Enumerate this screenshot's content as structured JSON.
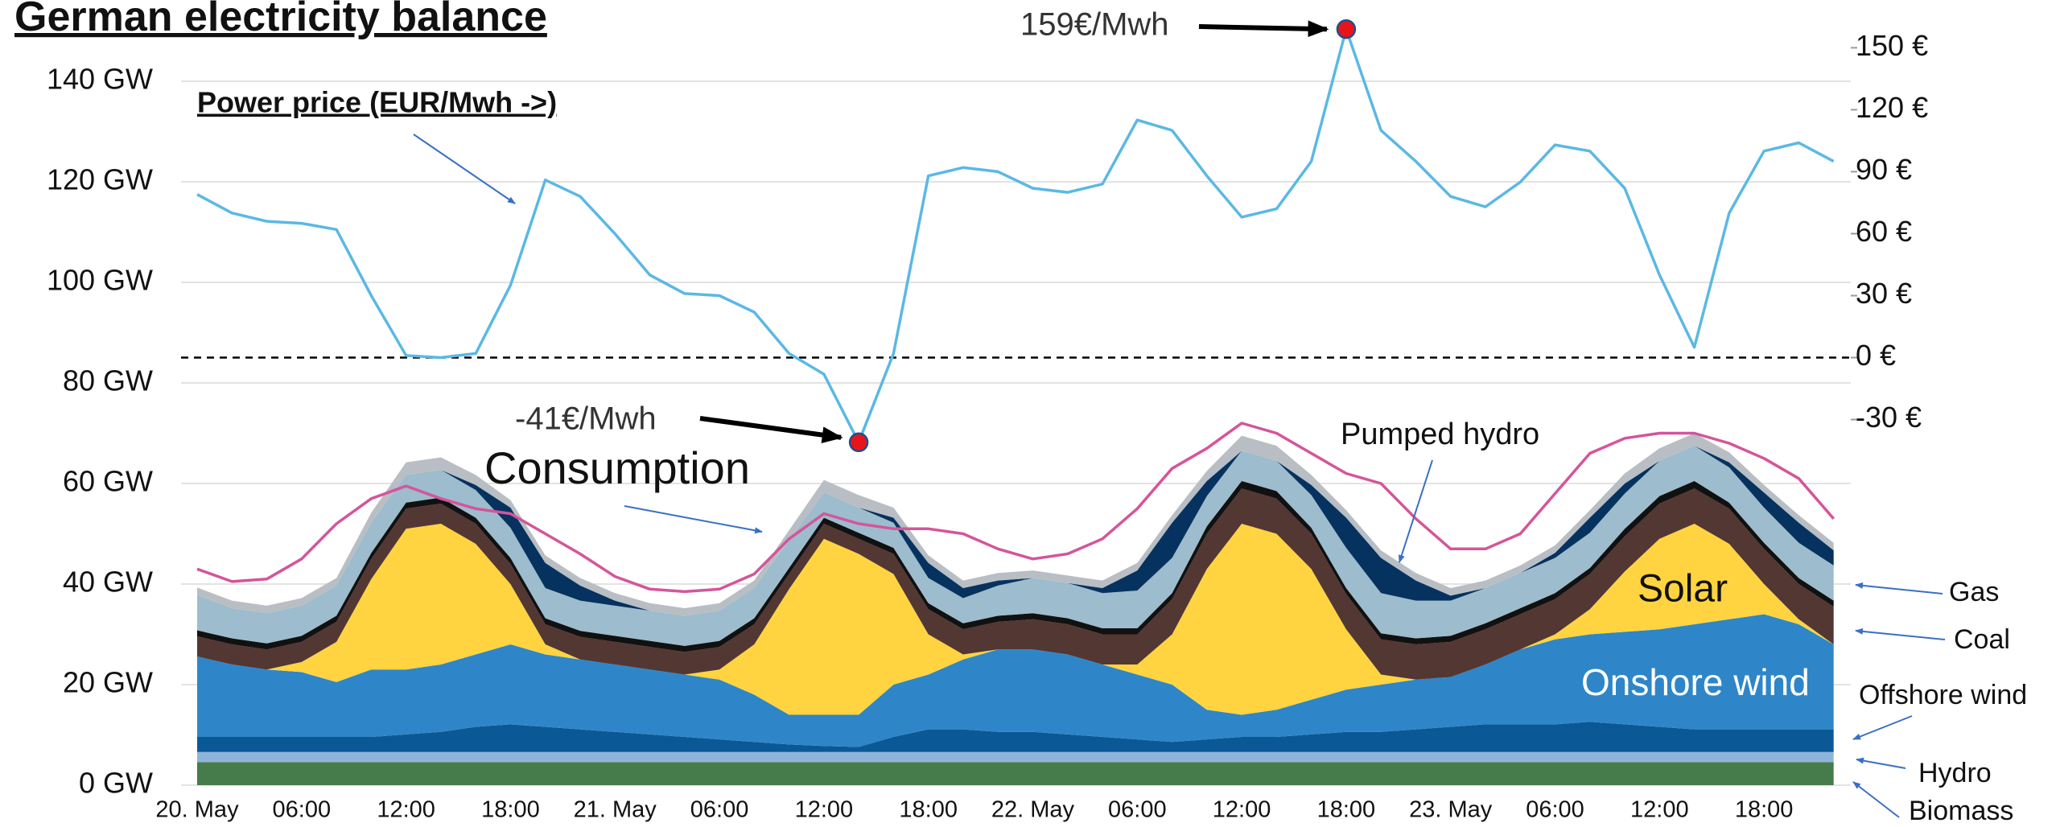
{
  "chart_data": {
    "type": "area",
    "stacked": true,
    "title": "German electricity balance",
    "categories": [
      "20. May",
      null,
      null,
      "06:00",
      null,
      null,
      "12:00",
      null,
      null,
      "18:00",
      null,
      null,
      "21. May",
      null,
      null,
      "06:00",
      null,
      null,
      "12:00",
      null,
      null,
      "18:00",
      null,
      null,
      "22. May",
      null,
      null,
      "06:00",
      null,
      null,
      "12:00",
      null,
      null,
      "18:00",
      null,
      null,
      "23. May",
      null,
      null,
      "06:00",
      null,
      null,
      "12:00",
      null,
      null,
      "18:00",
      null,
      null
    ],
    "ylim": [
      0,
      152
    ],
    "yticks": [
      {
        "value": 0,
        "label": "0 GW"
      },
      {
        "value": 20,
        "label": "20 GW"
      },
      {
        "value": 40,
        "label": "40 GW"
      },
      {
        "value": 60,
        "label": "60 GW"
      },
      {
        "value": 80,
        "label": "80 GW"
      },
      {
        "value": 100,
        "label": "100 GW"
      },
      {
        "value": 120,
        "label": "120 GW"
      },
      {
        "value": 140,
        "label": "140 GW"
      }
    ],
    "y2lim": [
      -207,
      163
    ],
    "y2ticks": [
      {
        "value": -30,
        "label": "-30 €"
      },
      {
        "value": 0,
        "label": "0 €"
      },
      {
        "value": 30,
        "label": "30 €"
      },
      {
        "value": 60,
        "label": "60 €"
      },
      {
        "value": 90,
        "label": "90 €"
      },
      {
        "value": 120,
        "label": "120 €"
      },
      {
        "value": 150,
        "label": "150 €"
      }
    ],
    "grid": true,
    "series": [
      {
        "name": "Biomass",
        "color": "#467b4b",
        "values": [
          4.6,
          4.6,
          4.6,
          4.6,
          4.6,
          4.6,
          4.6,
          4.6,
          4.6,
          4.6,
          4.6,
          4.6,
          4.6,
          4.6,
          4.6,
          4.6,
          4.6,
          4.6,
          4.6,
          4.6,
          4.6,
          4.6,
          4.6,
          4.6,
          4.6,
          4.6,
          4.6,
          4.6,
          4.6,
          4.6,
          4.6,
          4.6,
          4.6,
          4.6,
          4.6,
          4.6,
          4.6,
          4.6,
          4.6,
          4.6,
          4.6,
          4.6,
          4.6,
          4.6,
          4.6,
          4.6,
          4.6,
          4.6
        ]
      },
      {
        "name": "Hydro",
        "color": "#8fb4dc",
        "values": [
          2,
          2,
          2,
          2,
          2,
          2,
          2,
          2,
          2,
          2,
          2,
          2,
          2,
          2,
          2,
          2,
          2,
          2,
          2,
          2,
          2,
          2,
          2,
          2,
          2,
          2,
          2,
          2,
          2,
          2,
          2,
          2,
          2,
          2,
          2,
          2,
          2,
          2,
          2,
          2,
          2,
          2,
          2,
          2,
          2,
          2,
          2,
          2
        ]
      },
      {
        "name": "Offshore wind",
        "color": "#0b5896",
        "values": [
          3,
          3,
          3,
          3,
          3,
          3,
          3.5,
          4,
          5,
          5.5,
          5,
          4.5,
          4,
          3.5,
          3,
          2.5,
          2,
          1.5,
          1.2,
          1,
          3,
          4.5,
          4.5,
          4,
          4,
          3.5,
          3,
          2.5,
          2,
          2.5,
          3,
          3,
          3.5,
          4,
          4,
          4.5,
          5,
          5.5,
          5.5,
          5.5,
          6,
          5.5,
          5,
          4.5,
          4.5,
          4.5,
          4.5,
          4.5
        ]
      },
      {
        "name": "Onshore wind",
        "color": "#2e86c8",
        "values": [
          16,
          14.4,
          13.4,
          12.9,
          10.9,
          13.4,
          12.9,
          13.4,
          14.4,
          15.9,
          14.4,
          13.9,
          13.4,
          12.9,
          12.4,
          11.9,
          9.4,
          5.9,
          6.2,
          6.4,
          10.4,
          10.9,
          13.9,
          16.4,
          16.4,
          15.9,
          14.4,
          12.9,
          11.4,
          5.9,
          4.4,
          5.4,
          6.9,
          8.4,
          9.4,
          9.9,
          9.9,
          11.9,
          14.9,
          16.9,
          17.4,
          18.4,
          19.4,
          20.9,
          21.9,
          22.9,
          20.9,
          16.9
        ]
      },
      {
        "name": "Solar",
        "color": "#ffd440",
        "values": [
          0,
          0,
          0,
          2,
          8,
          18,
          28,
          28,
          22,
          12,
          2,
          0,
          0,
          0,
          0,
          2,
          10,
          25,
          35,
          32,
          22,
          8,
          1,
          0,
          0,
          0,
          0,
          2,
          10,
          28,
          38,
          35,
          26,
          12,
          2,
          0,
          0,
          0,
          0,
          1,
          5,
          12,
          18,
          20,
          15,
          6,
          1,
          0
        ]
      },
      {
        "name": "Coal",
        "color": "#533733",
        "values": [
          4,
          4,
          4,
          4,
          4,
          4,
          4,
          4,
          4,
          4,
          4,
          4.5,
          4.5,
          4.5,
          4.5,
          4.5,
          4,
          3,
          3,
          3,
          4,
          5,
          5,
          5.5,
          6,
          6,
          6,
          6,
          7,
          7,
          7,
          7,
          7,
          7,
          7,
          7,
          7,
          7,
          7,
          7,
          7,
          7,
          7,
          7,
          7,
          7,
          7,
          7.5
        ]
      },
      {
        "color": "#111111",
        "values": [
          1.2,
          1.2,
          1.2,
          1.2,
          1.2,
          1.2,
          1.2,
          1.2,
          1.2,
          1.2,
          1.2,
          1.2,
          1.2,
          1.2,
          1.2,
          1.2,
          1.2,
          1.2,
          1.2,
          1.2,
          1.2,
          1.2,
          1.2,
          1.2,
          1.2,
          1.2,
          1.2,
          1.2,
          1.2,
          1.5,
          1.5,
          1.5,
          1.2,
          1.2,
          1.2,
          1.2,
          1.2,
          1.2,
          1.2,
          1.2,
          1.2,
          1.5,
          1.5,
          1.5,
          1.2,
          1.2,
          1.2,
          1.2
        ]
      },
      {
        "name": "Gas",
        "color": "#9dbccd",
        "values": [
          7,
          6,
          6,
          6,
          6,
          6,
          5.5,
          5.5,
          5.5,
          6,
          6,
          6,
          6,
          6,
          6,
          6,
          6,
          5.5,
          5,
          5,
          5,
          5,
          5,
          6,
          7,
          7,
          7,
          7.5,
          7,
          6,
          6,
          6,
          6.5,
          8,
          8,
          7.5,
          7,
          7,
          7,
          7,
          7,
          7,
          7,
          7,
          7,
          7,
          7,
          7
        ]
      },
      {
        "name": "Pumped hydro",
        "color": "#06325f",
        "values": [
          0,
          0,
          0,
          0,
          0,
          0,
          0,
          0,
          1,
          4,
          5,
          3,
          1,
          0,
          0,
          0,
          0,
          0,
          0,
          0,
          1,
          3,
          2,
          1,
          0,
          0,
          1,
          4,
          7,
          3,
          0,
          0,
          2,
          6,
          7,
          4,
          1,
          0,
          0,
          1,
          3,
          2,
          0,
          0,
          1,
          3,
          4,
          3
        ]
      },
      {
        "color": "#b8bec3",
        "values": [
          1.5,
          1.5,
          1.5,
          1.5,
          1.5,
          2,
          2.5,
          2.5,
          2,
          1.5,
          1.5,
          1.5,
          1.5,
          1.5,
          1.5,
          1.5,
          1.5,
          2,
          2.5,
          2.5,
          2,
          1.5,
          1.5,
          1.5,
          1.5,
          1.5,
          1.5,
          1.5,
          1.5,
          2,
          3,
          3,
          2,
          1.5,
          1.5,
          1.5,
          1.5,
          1.5,
          1.5,
          1.5,
          1.5,
          2,
          2.5,
          2.5,
          2,
          1.5,
          1.5,
          1.5
        ]
      },
      {
        "name": "Consumption",
        "type": "line",
        "color": "#d4559a",
        "values": [
          43,
          40.5,
          41,
          45,
          52,
          57,
          59.5,
          57,
          55,
          54,
          50,
          46,
          41.5,
          39,
          38.5,
          39,
          42,
          49,
          54,
          52,
          51,
          51,
          50,
          47,
          45,
          46,
          49,
          55,
          63,
          67,
          72,
          70,
          66,
          62,
          60,
          53,
          47,
          47,
          50,
          58,
          66,
          69,
          70,
          70,
          68,
          65,
          61,
          53
        ]
      },
      {
        "name": "Power price (EUR/Mwh ->)",
        "type": "line",
        "axis": "y2",
        "color": "#5bb8e4",
        "values": [
          79,
          70,
          66,
          65,
          62,
          30,
          1,
          0,
          2,
          35,
          86,
          78,
          60,
          40,
          31,
          30,
          22,
          2,
          -8,
          -41,
          2,
          88,
          92,
          90,
          82,
          80,
          84,
          115,
          110,
          88,
          68,
          72,
          95,
          159,
          110,
          95,
          78,
          73,
          85,
          103,
          100,
          82,
          40,
          5,
          70,
          100,
          104,
          95
        ],
        "value_labels": [
          null,
          null,
          null,
          null,
          null,
          null,
          null,
          null,
          null,
          null,
          null,
          null,
          null,
          null,
          null,
          null,
          null,
          null,
          null,
          "-41€/Mwh",
          null,
          null,
          null,
          null,
          null,
          null,
          null,
          null,
          null,
          null,
          null,
          null,
          null,
          "159€/Mwh",
          null,
          null,
          null,
          null,
          null,
          null,
          null,
          null,
          null,
          null,
          null,
          null,
          null,
          null
        ]
      }
    ]
  }
}
